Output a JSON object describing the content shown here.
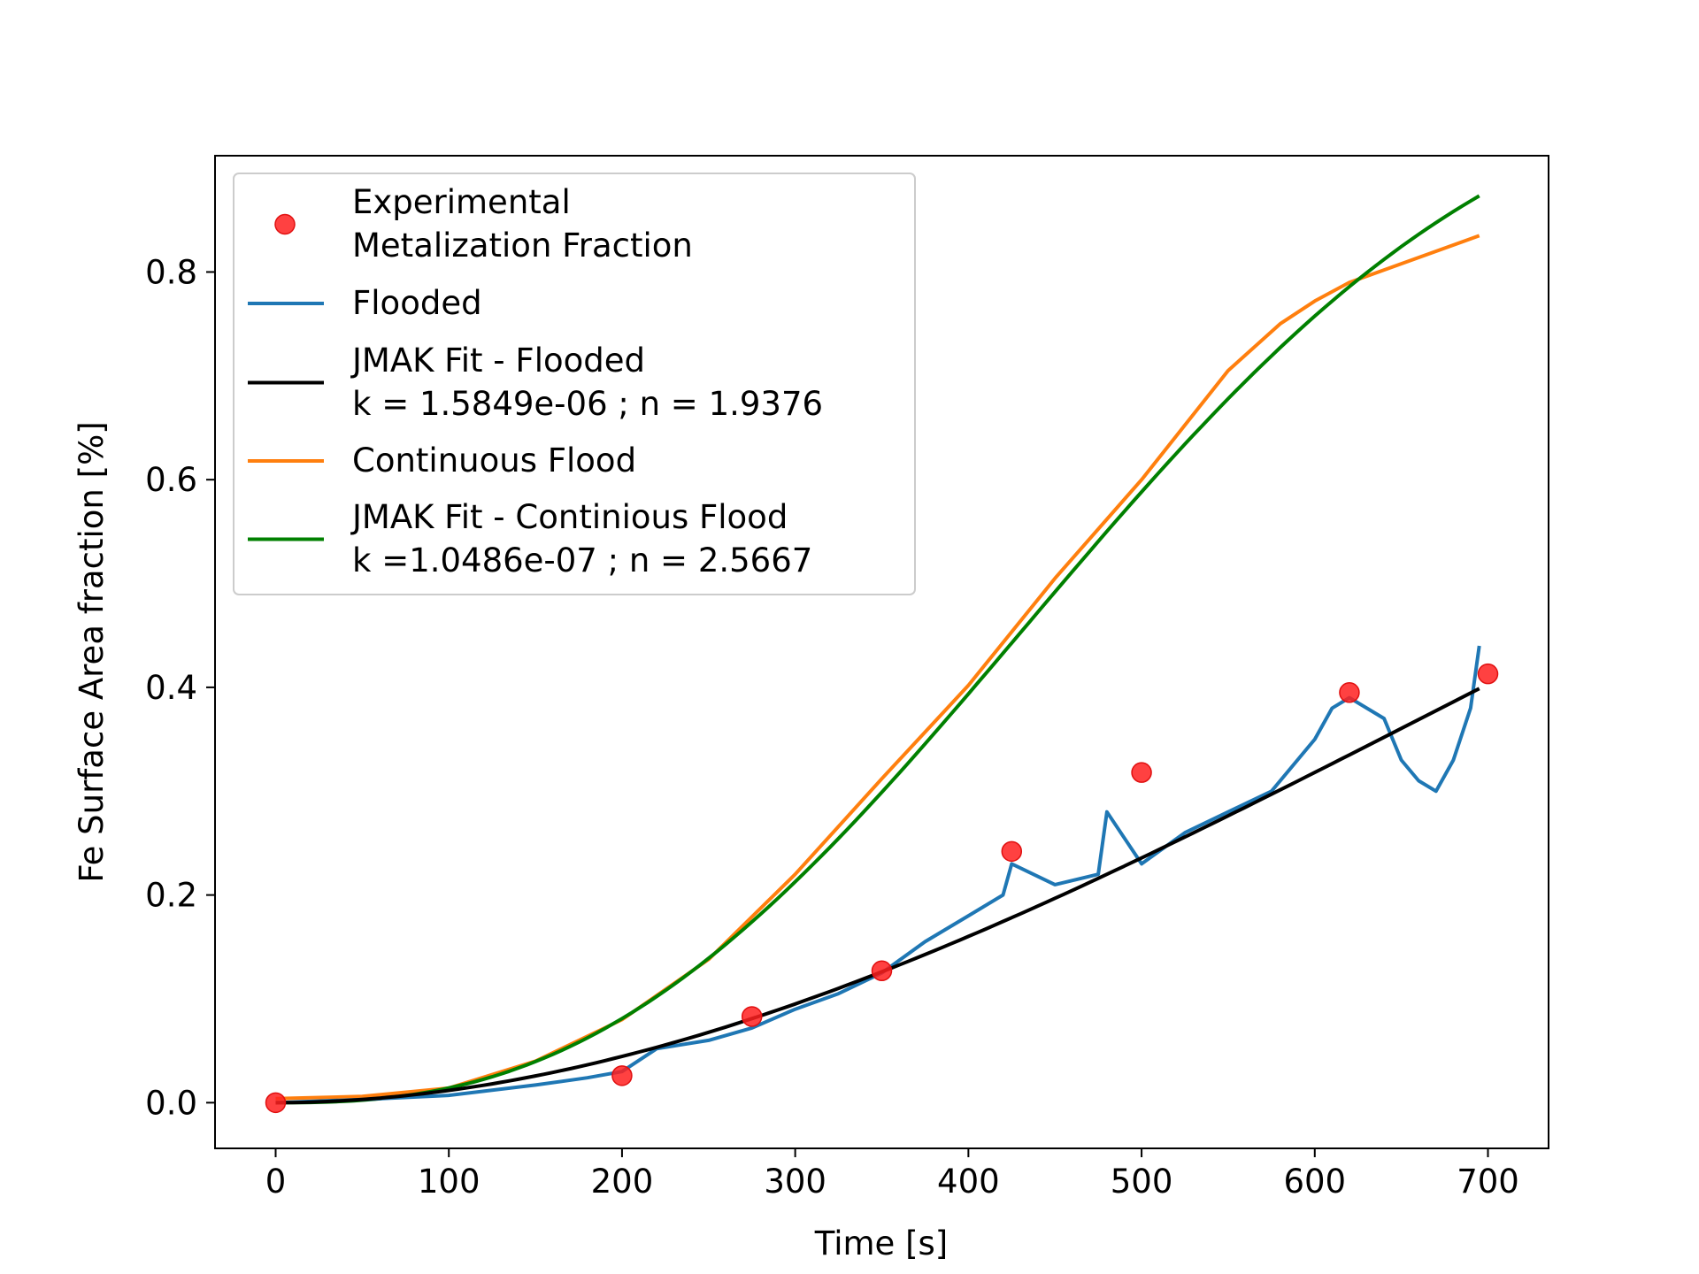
{
  "chart_data": {
    "type": "line",
    "title": "",
    "xlabel": "Time [s]",
    "ylabel": "Fe Surface Area fraction [%]",
    "xlim": [
      -35,
      735
    ],
    "ylim": [
      -0.044,
      0.912
    ],
    "xticks": [
      0,
      100,
      200,
      300,
      400,
      500,
      600,
      700
    ],
    "yticks": [
      0.0,
      0.2,
      0.4,
      0.6,
      0.8
    ],
    "xtick_labels": [
      "0",
      "100",
      "200",
      "300",
      "400",
      "500",
      "600",
      "700"
    ],
    "ytick_labels": [
      "0.0",
      "0.2",
      "0.4",
      "0.6",
      "0.8"
    ],
    "grid": false,
    "legend_position": "top-left",
    "series": [
      {
        "name": "Experimental\nMetalization Fraction",
        "type": "scatter",
        "color": "#ff2020",
        "x": [
          0,
          200,
          275,
          350,
          425,
          500,
          620,
          700
        ],
        "y": [
          0.0,
          0.026,
          0.083,
          0.127,
          0.242,
          0.318,
          0.395,
          0.413
        ]
      },
      {
        "name": "Flooded",
        "type": "line",
        "color": "#1f77b4",
        "x": [
          0,
          50,
          100,
          150,
          180,
          200,
          220,
          250,
          275,
          300,
          325,
          350,
          375,
          400,
          420,
          425,
          450,
          475,
          480,
          500,
          525,
          550,
          575,
          600,
          610,
          620,
          640,
          650,
          660,
          670,
          680,
          690,
          695
        ],
        "y": [
          0.0,
          0.003,
          0.007,
          0.017,
          0.024,
          0.03,
          0.052,
          0.06,
          0.072,
          0.09,
          0.105,
          0.125,
          0.155,
          0.18,
          0.2,
          0.23,
          0.21,
          0.22,
          0.28,
          0.23,
          0.26,
          0.28,
          0.3,
          0.35,
          0.38,
          0.39,
          0.37,
          0.33,
          0.31,
          0.3,
          0.33,
          0.38,
          0.44
        ]
      },
      {
        "name": "JMAK Fit - Flooded\n k = 1.5849e-06 ; n = 1.9376",
        "type": "line",
        "color": "#000000",
        "k": 1.5849e-06,
        "n": 1.9376,
        "x_range": [
          0,
          695
        ]
      },
      {
        "name": "Continuous Flood",
        "type": "line",
        "color": "#ff7f0e",
        "x": [
          0,
          50,
          100,
          150,
          200,
          250,
          300,
          350,
          400,
          450,
          500,
          550,
          580,
          600,
          620,
          650,
          695
        ],
        "y": [
          0.004,
          0.006,
          0.014,
          0.04,
          0.08,
          0.138,
          0.22,
          0.312,
          0.402,
          0.505,
          0.6,
          0.705,
          0.75,
          0.772,
          0.79,
          0.808,
          0.835
        ]
      },
      {
        "name": "JMAK Fit - Continious Flood\n k =1.0486e-07 ; n = 2.5667",
        "type": "line",
        "color": "#008000",
        "k": 1.0486e-07,
        "n": 2.5667,
        "x_range": [
          0,
          695
        ]
      }
    ]
  }
}
